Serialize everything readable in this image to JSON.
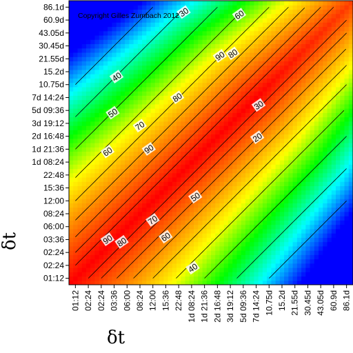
{
  "chart_data": {
    "type": "heatmap",
    "title": "",
    "copyright": "Copyright Gilles Zumbach 2012",
    "xlabel": "δt",
    "ylabel": "δt",
    "categories": [
      "01:12",
      "02:24",
      "02:24",
      "03:36",
      "06:00",
      "08:24",
      "12:00",
      "15:36",
      "22:48",
      "1d 08:24",
      "1d 21:36",
      "2d 16:48",
      "3d 19:12",
      "5d 09:36",
      "7d 14:24",
      "10.75d",
      "15.2d",
      "21.55d",
      "30.45d",
      "43.05d",
      "60.9d",
      "86.1d"
    ],
    "colorscale": [
      "#0000ff",
      "#00ffff",
      "#00ff00",
      "#ffff00",
      "#ff7f00",
      "#ff0000"
    ],
    "value_range": [
      10,
      100
    ],
    "contour_labels": [
      {
        "text": "30",
        "x": 8.4,
        "y": 20.6
      },
      {
        "text": "60",
        "x": 12.7,
        "y": 20.4
      },
      {
        "text": "40",
        "x": 3.2,
        "y": 15.6
      },
      {
        "text": "90",
        "x": 11.2,
        "y": 17.2
      },
      {
        "text": "80",
        "x": 12.2,
        "y": 17.4
      },
      {
        "text": "80",
        "x": 7.9,
        "y": 14.0
      },
      {
        "text": "30",
        "x": 14.2,
        "y": 13.4
      },
      {
        "text": "50",
        "x": 2.9,
        "y": 12.8
      },
      {
        "text": "70",
        "x": 5.0,
        "y": 11.8
      },
      {
        "text": "20",
        "x": 14.1,
        "y": 10.9
      },
      {
        "text": "90",
        "x": 5.7,
        "y": 10.0
      },
      {
        "text": "60",
        "x": 2.5,
        "y": 9.8
      },
      {
        "text": "50",
        "x": 9.3,
        "y": 6.3
      },
      {
        "text": "70",
        "x": 6.0,
        "y": 4.5
      },
      {
        "text": "90",
        "x": 2.5,
        "y": 3.0
      },
      {
        "text": "80",
        "x": 3.6,
        "y": 2.8
      },
      {
        "text": "60",
        "x": 7.0,
        "y": 3.2
      },
      {
        "text": "40",
        "x": 9.1,
        "y": 0.8
      }
    ]
  }
}
